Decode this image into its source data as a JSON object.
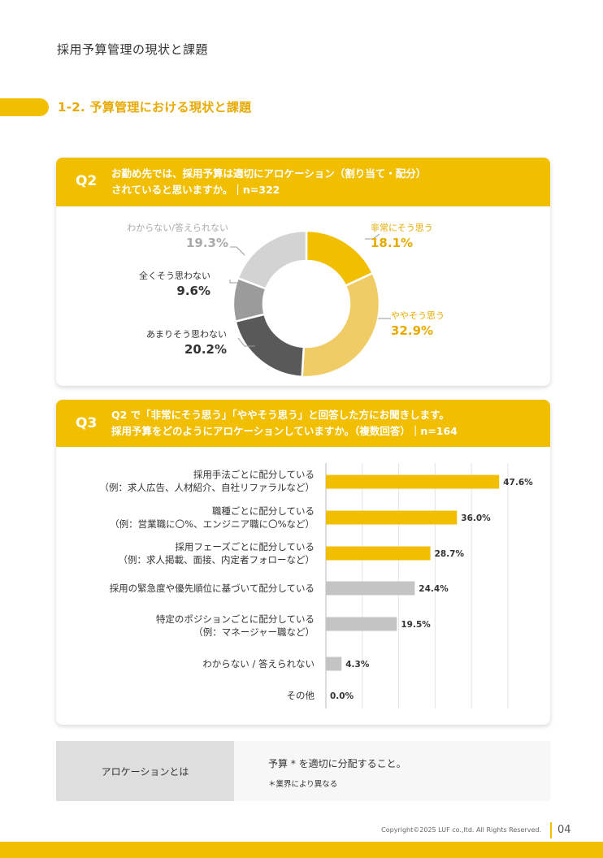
{
  "header": {
    "title": "採用予算管理の現状と課題"
  },
  "section": {
    "title": "1-2. 予算管理における現状と課題"
  },
  "q2": {
    "num": "Q2",
    "line1": "お勤め先では、採用予算は適切にアロケーション（割り当て・配分）",
    "line2": "されていると思いますか。｜n=322"
  },
  "q3": {
    "num": "Q3",
    "line1": "Q2 で「非常にそう思う」「ややそう思う」と回答した方にお聞きします。",
    "line2": "採用予算をどのようにアロケーションしていますか。（複数回答）｜n=164"
  },
  "chart_data": [
    {
      "type": "pie",
      "slices": [
        {
          "label": "非常にそう思う",
          "value": 18.1,
          "pct_text": "18.1%",
          "color": "#F2BE00"
        },
        {
          "label": "ややそう思う",
          "value": 32.9,
          "pct_text": "32.9%",
          "color": "#F0CC66"
        },
        {
          "label": "あまりそう思わない",
          "value": 20.2,
          "pct_text": "20.2%",
          "color": "#595959"
        },
        {
          "label": "全くそう思わない",
          "value": 9.6,
          "pct_text": "9.6%",
          "color": "#9B9B9B"
        },
        {
          "label": "わからない/答えられない",
          "value": 19.3,
          "pct_text": "19.3%",
          "color": "#D3D3D3"
        }
      ]
    },
    {
      "type": "bar",
      "orientation": "horizontal",
      "categories": [
        [
          "採用手法ごとに配分している",
          "（例：求人広告、人材紹介、自社リファラルなど）"
        ],
        [
          "職種ごとに配分している",
          "（例：営業職に〇%、エンジニア職に〇%など）"
        ],
        [
          "採用フェーズごとに配分している",
          "（例：求人掲載、面接、内定者フォローなど）"
        ],
        [
          "採用の緊急度や優先順位に基づいて配分している"
        ],
        [
          "特定のポジションごとに配分している",
          "（例：マネージャー職など）"
        ],
        [
          "わからない / 答えられない"
        ],
        [
          "その他"
        ]
      ],
      "values": [
        47.6,
        36.0,
        28.7,
        24.4,
        19.5,
        4.3,
        0.0
      ],
      "value_labels": [
        "47.6%",
        "36.0%",
        "28.7%",
        "24.4%",
        "19.5%",
        "4.3%",
        "0.0%"
      ],
      "colors": [
        "#F2BE00",
        "#F2BE00",
        "#F2BE00",
        "#C4C4C4",
        "#C4C4C4",
        "#C4C4C4",
        "#C4C4C4"
      ],
      "xlim": [
        0,
        50
      ],
      "grid": true
    }
  ],
  "definition": {
    "key": "アロケーションとは",
    "value": "予算 * を適切に分配すること。",
    "note": "＊業界により異なる"
  },
  "footer": {
    "copyright": "Copyright©2025 LUF co.,ltd. All Rights Reserved.",
    "page": "04"
  },
  "colors": {
    "accent": "#F2BE00",
    "accent_text": "#E8A900"
  }
}
